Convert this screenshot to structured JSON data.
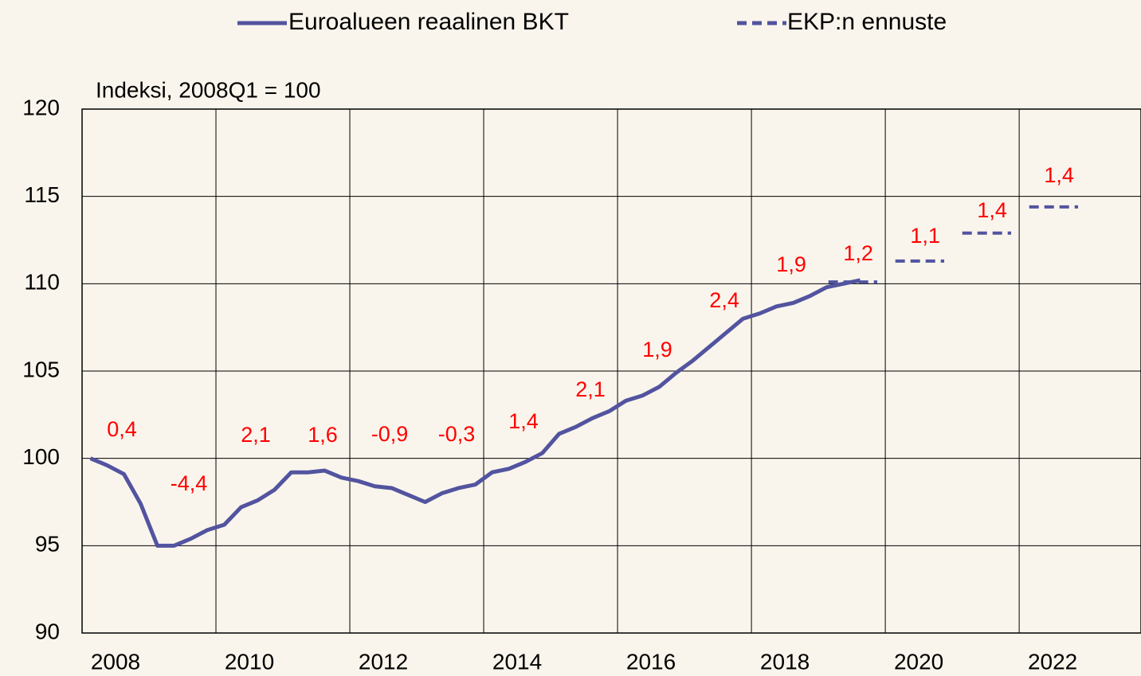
{
  "chart_data": {
    "type": "line",
    "y_axis_label": "Indeksi, 2008Q1 = 100",
    "xlim": [
      2008,
      2023.82
    ],
    "ylim": [
      90,
      120
    ],
    "yticks": [
      90,
      95,
      100,
      105,
      110,
      115,
      120
    ],
    "xticks": [
      {
        "value": 2008.5,
        "label": "2008"
      },
      {
        "value": 2010.5,
        "label": "2010"
      },
      {
        "value": 2012.5,
        "label": "2012"
      },
      {
        "value": 2014.5,
        "label": "2014"
      },
      {
        "value": 2016.5,
        "label": "2016"
      },
      {
        "value": 2018.5,
        "label": "2018"
      },
      {
        "value": 2020.5,
        "label": "2020"
      },
      {
        "value": 2022.5,
        "label": "2022"
      }
    ],
    "xgrid": [
      2010,
      2012,
      2014,
      2016,
      2018,
      2020,
      2022
    ],
    "grid": true,
    "series": [
      {
        "name": "Euroalueen reaalinen BKT",
        "color": "#5254a0",
        "style": "solid",
        "x": [
          2008.125,
          2008.375,
          2008.625,
          2008.875,
          2009.125,
          2009.375,
          2009.625,
          2009.875,
          2010.125,
          2010.375,
          2010.625,
          2010.875,
          2011.125,
          2011.375,
          2011.625,
          2011.875,
          2012.125,
          2012.375,
          2012.625,
          2012.875,
          2013.125,
          2013.375,
          2013.625,
          2013.875,
          2014.125,
          2014.375,
          2014.625,
          2014.875,
          2015.125,
          2015.375,
          2015.625,
          2015.875,
          2016.125,
          2016.375,
          2016.625,
          2016.875,
          2017.125,
          2017.375,
          2017.625,
          2017.875,
          2018.125,
          2018.375,
          2018.625,
          2018.875,
          2019.125,
          2019.375,
          2019.625
        ],
        "values": [
          100.0,
          99.6,
          99.1,
          97.4,
          95.0,
          95.0,
          95.4,
          95.9,
          96.2,
          97.2,
          97.6,
          98.2,
          99.2,
          99.2,
          99.3,
          98.9,
          98.7,
          98.4,
          98.3,
          97.9,
          97.5,
          98.0,
          98.3,
          98.5,
          99.2,
          99.4,
          99.8,
          100.3,
          101.4,
          101.8,
          102.3,
          102.7,
          103.3,
          103.6,
          104.1,
          104.9,
          105.6,
          106.4,
          107.2,
          108.0,
          108.3,
          108.7,
          108.9,
          109.3,
          109.8,
          110.0,
          110.2
        ]
      },
      {
        "name": "EKP:n ennuste",
        "color": "#5254a0",
        "style": "dashed",
        "x": [
          2019,
          2020,
          2021,
          2022
        ],
        "values": [
          110.1,
          111.3,
          112.9,
          114.4
        ]
      }
    ],
    "growth": {
      "x": [
        2008,
        2009,
        2010,
        2011,
        2012,
        2013,
        2014,
        2015,
        2016,
        2017,
        2018,
        2019,
        2020,
        2021,
        2022
      ],
      "values": [
        0.4,
        -4.4,
        2.1,
        1.6,
        -0.9,
        -0.3,
        1.4,
        2.1,
        1.9,
        2.4,
        1.9,
        1.2,
        1.1,
        1.4,
        1.4
      ],
      "value_labels": [
        "0,4",
        "-4,4",
        "2,1",
        "1,6",
        "-0,9",
        "-0,3",
        "1,4",
        "2,1",
        "1,9",
        "2,4",
        "1,9",
        "1,2",
        "1,1",
        "1,4",
        "1,4"
      ],
      "color": "#ff0000"
    }
  }
}
